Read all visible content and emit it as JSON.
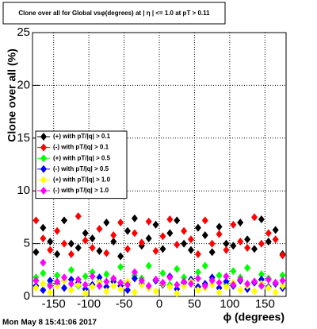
{
  "chart_data": {
    "type": "scatter",
    "title": "Clone  over all for Global vsφ(degrees) at | η | <= 1.0 at pT > 0.11",
    "x_label": "ϕ (degrees)",
    "y_label": "Clone  over all (%)",
    "timestamp": "Mon May  8 15:41:06 2017",
    "xlim": [
      -180,
      180
    ],
    "ylim": [
      0,
      25
    ],
    "xticks": [
      -150,
      -100,
      -50,
      0,
      50,
      100,
      150
    ],
    "yticks": [
      0,
      5,
      10,
      15,
      20,
      25
    ],
    "grid": true,
    "legend": "left",
    "x": [
      -175,
      -165,
      -155,
      -145,
      -135,
      -125,
      -115,
      -105,
      -95,
      -85,
      -75,
      -65,
      -55,
      -45,
      -35,
      -25,
      -15,
      -5,
      5,
      15,
      25,
      35,
      45,
      55,
      65,
      75,
      85,
      95,
      105,
      115,
      125,
      135,
      145,
      155,
      165,
      175
    ],
    "series": [
      {
        "name": "(+) with pT/|q| > 0.1",
        "color": "#000000",
        "values": [
          4.2,
          6.5,
          5.2,
          4.0,
          7.2,
          5.0,
          4.6,
          6.0,
          5.5,
          4.3,
          7.0,
          5.2,
          3.8,
          6.2,
          7.4,
          4.8,
          5.5,
          6.8,
          4.5,
          6.0,
          7.2,
          5.0,
          4.4,
          6.5,
          5.8,
          4.2,
          6.6,
          5.0,
          4.8,
          7.0,
          5.4,
          4.5,
          7.3,
          5.2,
          6.3,
          4.0
        ]
      },
      {
        "name": "(-) with pT/|q| > 0.1",
        "color": "#ff0000",
        "values": [
          7.2,
          5.5,
          4.4,
          6.2,
          5.0,
          4.0,
          7.6,
          5.3,
          4.6,
          6.4,
          4.1,
          5.8,
          7.0,
          4.5,
          6.0,
          5.1,
          7.1,
          4.3,
          5.7,
          7.3,
          4.9,
          6.2,
          5.4,
          4.0,
          7.2,
          5.0,
          5.9,
          4.4,
          6.8,
          5.2,
          4.6,
          7.5,
          5.0,
          6.0,
          5.4,
          3.9
        ]
      },
      {
        "name": "(+) with pT/|q| > 0.5",
        "color": "#00ff00",
        "values": [
          1.8,
          2.2,
          1.2,
          2.0,
          1.5,
          2.5,
          1.0,
          1.9,
          2.3,
          1.4,
          2.1,
          1.6,
          2.8,
          1.3,
          2.0,
          1.7,
          2.9,
          1.5,
          2.2,
          1.1,
          2.6,
          1.8,
          1.4,
          2.3,
          2.9,
          1.6,
          2.0,
          1.2,
          2.4,
          1.8,
          2.7,
          1.4,
          2.1,
          1.7,
          1.3,
          2.0
        ]
      },
      {
        "name": "(-) with pT/|q| > 0.5",
        "color": "#0000ff",
        "values": [
          1.0,
          0.6,
          1.5,
          1.2,
          0.8,
          1.6,
          1.3,
          0.7,
          1.1,
          1.8,
          0.9,
          1.4,
          1.0,
          0.6,
          1.7,
          1.2,
          0.8,
          1.5,
          1.1,
          1.9,
          0.7,
          1.3,
          1.6,
          0.9,
          1.2,
          1.8,
          0.8,
          1.4,
          1.0,
          1.5,
          0.7,
          1.3,
          1.6,
          0.9,
          1.2,
          0.8
        ]
      },
      {
        "name": "(+) with pT/|q| > 1.0",
        "color": "#ffff00",
        "values": [
          0.8,
          1.2,
          0.4,
          1.0,
          1.5,
          0.6,
          1.1,
          0.3,
          0.9,
          1.3,
          0.5,
          1.0,
          0.7,
          1.4,
          0.4,
          1.1,
          0.8,
          0.5,
          1.2,
          0.9,
          0.3,
          1.0,
          1.4,
          0.6,
          0.8,
          1.1,
          0.4,
          0.9,
          1.3,
          0.6,
          1.0,
          0.5,
          1.2,
          0.8,
          0.4,
          1.0
        ]
      },
      {
        "name": "(-) with pT/|q| > 1.0",
        "color": "#ff00ff",
        "values": [
          1.5,
          3.2,
          1.0,
          1.4,
          1.8,
          1.2,
          1.6,
          1.1,
          1.9,
          1.0,
          1.4,
          1.7,
          1.3,
          1.1,
          2.3,
          1.5,
          1.0,
          1.6,
          1.3,
          1.8,
          1.1,
          1.4,
          1.2,
          1.7,
          1.0,
          1.5,
          1.3,
          1.9,
          1.1,
          1.6,
          1.2,
          1.4,
          1.0,
          1.6,
          1.3,
          1.5
        ]
      }
    ]
  }
}
